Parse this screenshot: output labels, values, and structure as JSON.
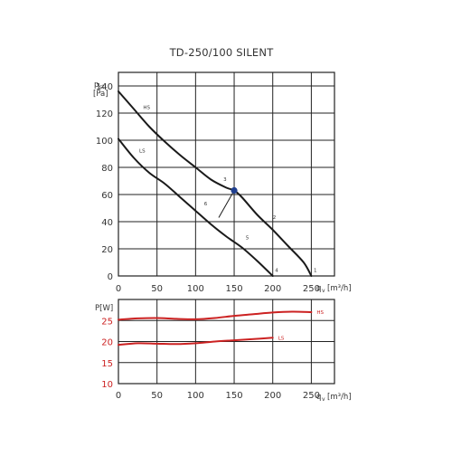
{
  "colors": {
    "pressure_curve": "#1a1a1a",
    "power_curve": "#cc2222",
    "operating_point": "#1f3f8f",
    "power_axis_label": "#cc2222",
    "grid": "#222222",
    "text": "#333333"
  },
  "chart_data": [
    {
      "type": "line",
      "title": "TD-250/100 SILENT",
      "ylabel_main": "p",
      "ylabel_sub": "st",
      "ylabel_unit": "[Pa]",
      "xlabel_main": "q",
      "xlabel_sub": "v",
      "xlabel_unit": "[m³/h]",
      "xlim": [
        0,
        280
      ],
      "ylim": [
        0,
        150
      ],
      "x_ticks": [
        0,
        50,
        100,
        150,
        200,
        250
      ],
      "y_ticks": [
        0,
        20,
        40,
        60,
        80,
        100,
        120,
        140
      ],
      "grid": true,
      "series": [
        {
          "name": "HS",
          "x": [
            0,
            20,
            40,
            60,
            80,
            100,
            120,
            140,
            150,
            160,
            180,
            200,
            220,
            240,
            250
          ],
          "y": [
            136,
            123,
            110,
            99,
            89,
            80,
            71,
            65,
            63,
            58,
            45,
            34,
            22,
            10,
            0
          ]
        },
        {
          "name": "LS",
          "x": [
            0,
            20,
            40,
            60,
            80,
            100,
            120,
            140,
            160,
            180,
            200
          ],
          "y": [
            101,
            87,
            76,
            68,
            58,
            48,
            38,
            29,
            21,
            11,
            0
          ]
        }
      ],
      "operating_point": {
        "x": 150,
        "y": 63
      },
      "resistance_line": {
        "x": [
          150,
          130
        ],
        "y": [
          63,
          43
        ]
      },
      "curve_labels": [
        {
          "text": "HS",
          "x": 32,
          "y": 123
        },
        {
          "text": "LS",
          "x": 27,
          "y": 91
        },
        {
          "text": "1",
          "x": 253,
          "y": 3
        },
        {
          "text": "2",
          "x": 200,
          "y": 42
        },
        {
          "text": "3",
          "x": 136,
          "y": 70
        },
        {
          "text": "4",
          "x": 203,
          "y": 3
        },
        {
          "text": "5",
          "x": 165,
          "y": 27
        },
        {
          "text": "6",
          "x": 111,
          "y": 52
        }
      ]
    },
    {
      "type": "line",
      "ylabel": "P[W]",
      "xlabel_main": "q",
      "xlabel_sub": "v",
      "xlabel_unit": "[m³/h]",
      "xlim": [
        0,
        280
      ],
      "ylim": [
        10,
        30
      ],
      "x_ticks": [
        0,
        50,
        100,
        150,
        200,
        250
      ],
      "y_ticks": [
        10,
        15,
        20,
        25
      ],
      "grid": true,
      "series": [
        {
          "name": "HS",
          "x": [
            0,
            25,
            50,
            75,
            100,
            125,
            150,
            175,
            200,
            225,
            250
          ],
          "y": [
            25.2,
            25.5,
            25.6,
            25.4,
            25.3,
            25.6,
            26.1,
            26.5,
            26.9,
            27.1,
            27.0
          ]
        },
        {
          "name": "LS",
          "x": [
            0,
            25,
            50,
            75,
            100,
            125,
            150,
            175,
            200
          ],
          "y": [
            19.2,
            19.6,
            19.5,
            19.4,
            19.6,
            20.0,
            20.3,
            20.6,
            20.9
          ]
        }
      ]
    }
  ]
}
